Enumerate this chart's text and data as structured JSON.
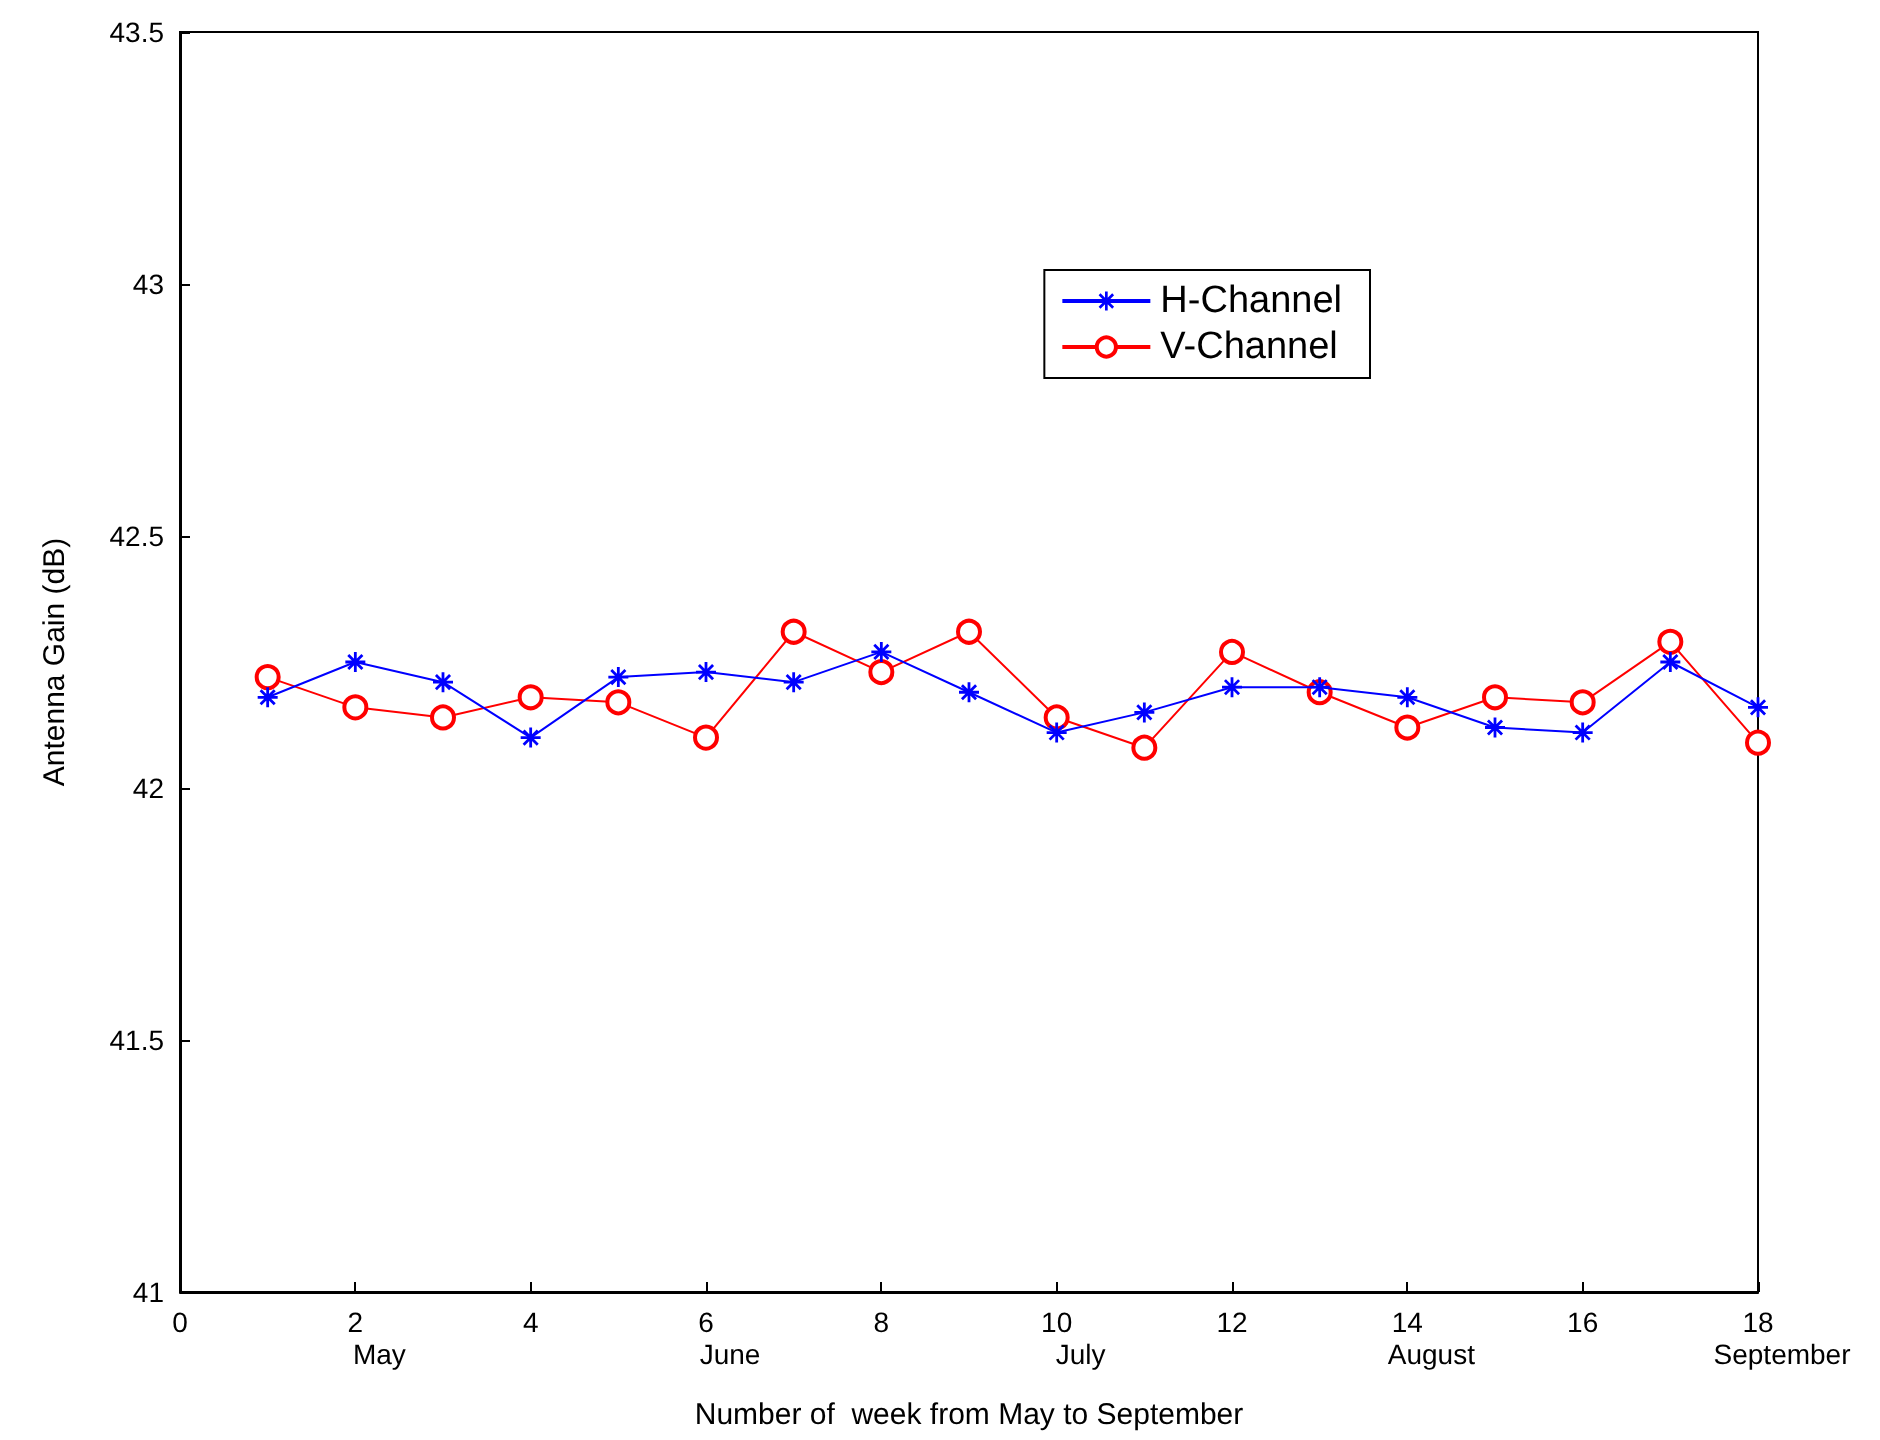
{
  "chart_data": {
    "type": "line",
    "xlabel": "Number of  week from May to September",
    "ylabel": "Antenna Gain (dB)",
    "x": [
      1,
      2,
      3,
      4,
      5,
      6,
      7,
      8,
      9,
      10,
      11,
      12,
      13,
      14,
      15,
      16,
      17,
      18
    ],
    "series": [
      {
        "name": "H-Channel",
        "color": "#0000ff",
        "marker": "star",
        "values": [
          42.18,
          42.25,
          42.21,
          42.1,
          42.22,
          42.23,
          42.21,
          42.27,
          42.19,
          42.11,
          42.15,
          42.2,
          42.2,
          42.18,
          42.12,
          42.11,
          42.25,
          42.16
        ]
      },
      {
        "name": "V-Channel",
        "color": "#ff0000",
        "marker": "circle",
        "values": [
          42.22,
          42.16,
          42.14,
          42.18,
          42.17,
          42.1,
          42.31,
          42.23,
          42.31,
          42.14,
          42.08,
          42.27,
          42.19,
          42.12,
          42.18,
          42.17,
          42.29,
          42.09
        ]
      }
    ],
    "xlim": [
      0,
      18
    ],
    "xticks": [
      0,
      2,
      4,
      6,
      8,
      10,
      12,
      14,
      16,
      18
    ],
    "ylim": [
      41,
      43.5
    ],
    "yticks": [
      41,
      41.5,
      42,
      42.5,
      43,
      43.5
    ],
    "annotations": [
      "May",
      "June",
      "July",
      "August",
      "September"
    ],
    "legend": "top right",
    "grid": false,
    "line_style": "solid"
  }
}
